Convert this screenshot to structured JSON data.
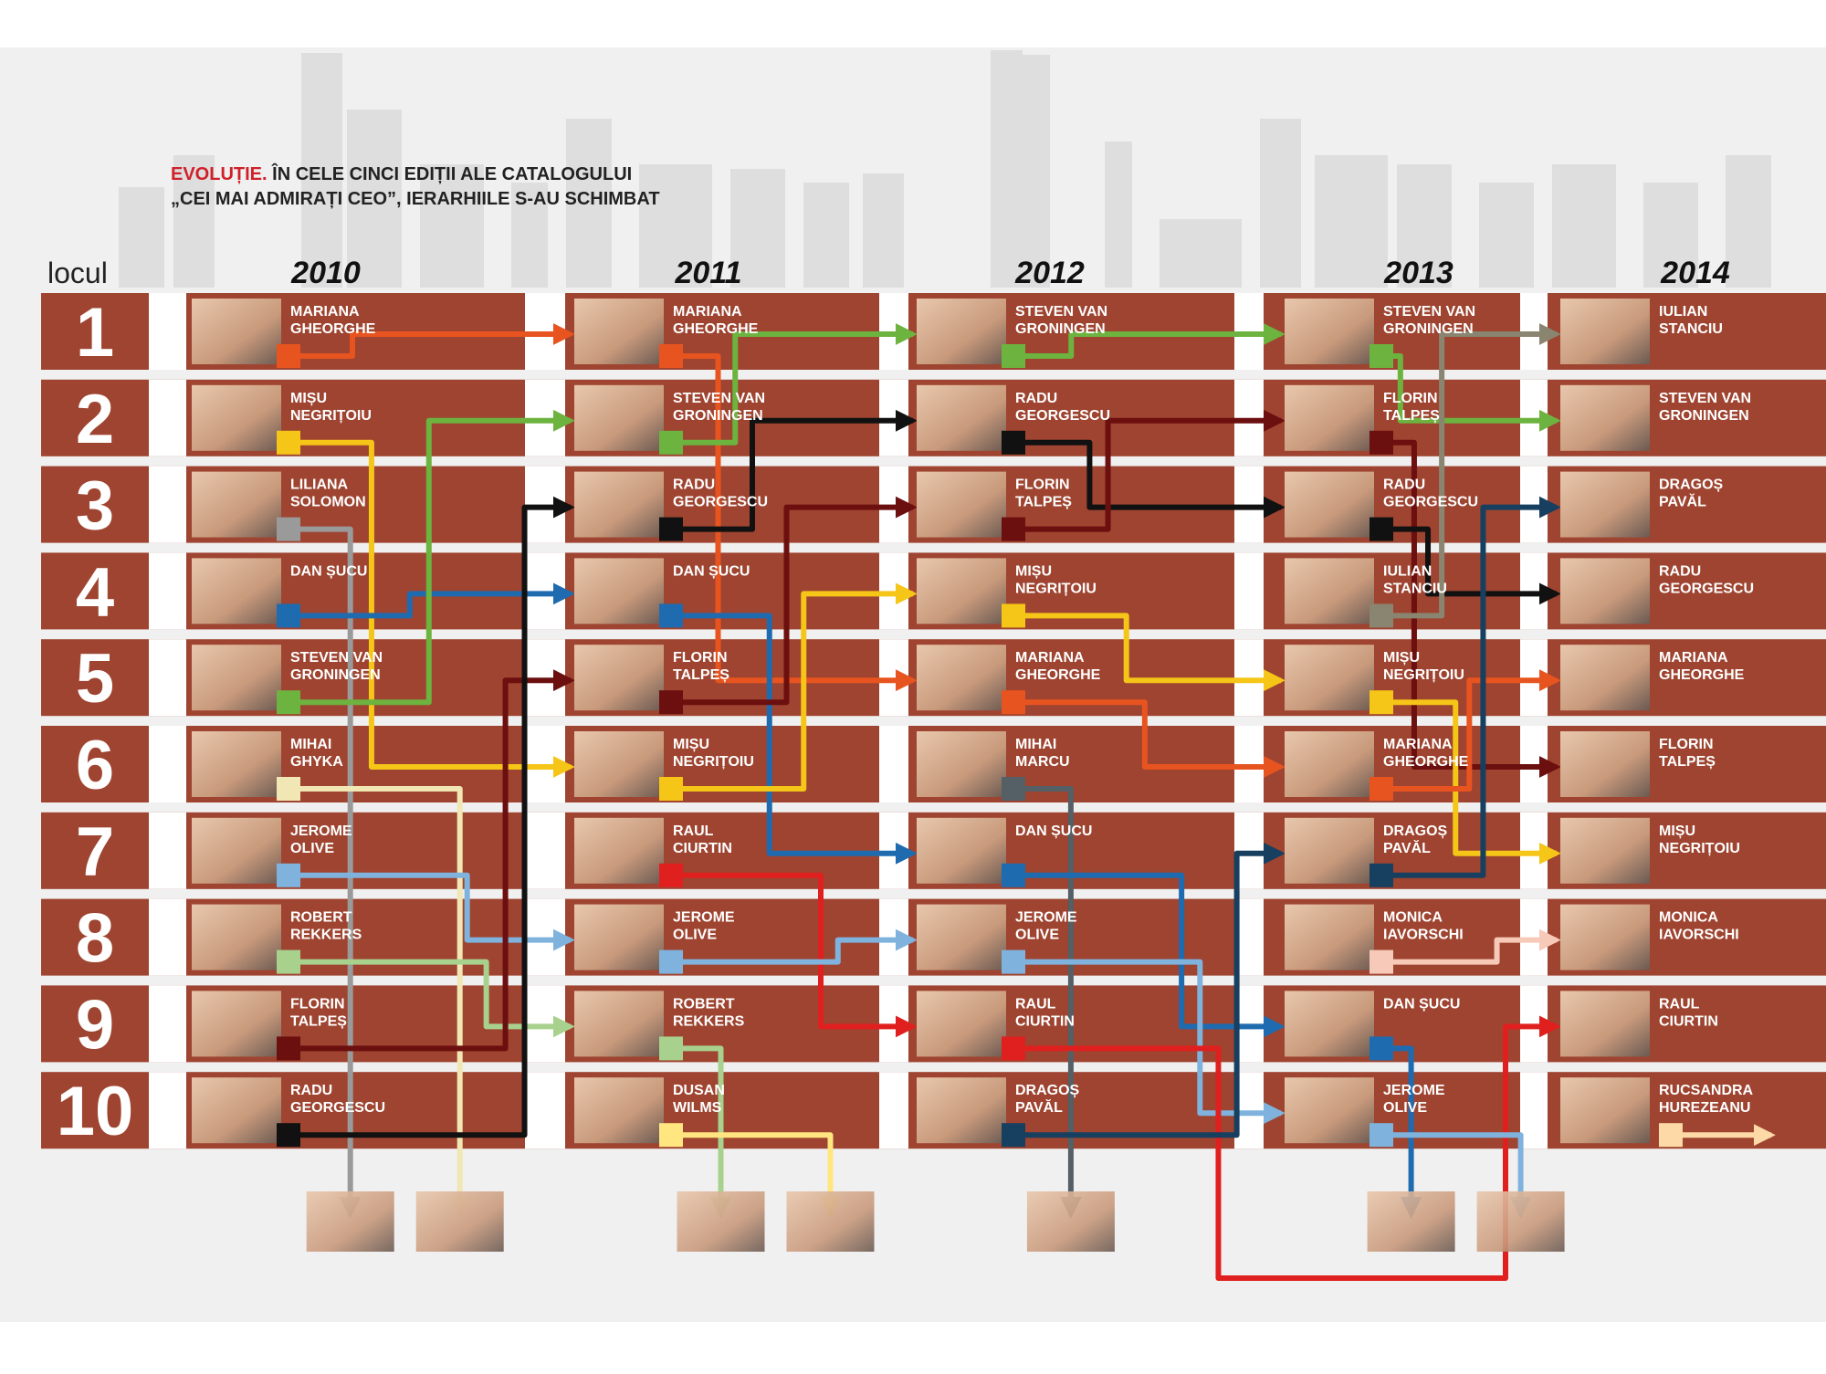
{
  "header": {
    "title_highlight": "EVOLUȚIE.",
    "title_line1": "ÎN CELE CINCI EDIȚII ALE CATALOGULUI",
    "title_line2": "„CEI MAI ADMIRAȚI CEO”, IERARHIILE S-AU SCHIMBAT"
  },
  "rank_label": "locul",
  "ranks": [
    1,
    2,
    3,
    4,
    5,
    6,
    7,
    8,
    9,
    10
  ],
  "columns": [
    {
      "year": 2010,
      "names": [
        [
          "MARIANA",
          "GHEORGHE"
        ],
        [
          "MIȘU",
          "NEGRIȚOIU"
        ],
        [
          "LILIANA",
          "SOLOMON"
        ],
        [
          "DAN ȘUCU"
        ],
        [
          "STEVEN VAN",
          "GRONINGEN"
        ],
        [
          "MIHAI",
          "GHYKA"
        ],
        [
          "JEROME",
          "OLIVE"
        ],
        [
          "ROBERT",
          "REKKERS"
        ],
        [
          "FLORIN",
          "TALPEȘ"
        ],
        [
          "RADU",
          "GEORGESCU"
        ]
      ]
    },
    {
      "year": 2011,
      "names": [
        [
          "MARIANA",
          "GHEORGHE"
        ],
        [
          "STEVEN VAN",
          "GRONINGEN"
        ],
        [
          "RADU",
          "GEORGESCU"
        ],
        [
          "DAN ȘUCU"
        ],
        [
          "FLORIN",
          "TALPEȘ"
        ],
        [
          "MIȘU",
          "NEGRIȚOIU"
        ],
        [
          "RAUL",
          "CIURTIN"
        ],
        [
          "JEROME",
          "OLIVE"
        ],
        [
          "ROBERT",
          "REKKERS"
        ],
        [
          "DUSAN",
          "WILMS"
        ]
      ]
    },
    {
      "year": 2012,
      "names": [
        [
          "STEVEN VAN",
          "GRONINGEN"
        ],
        [
          "RADU",
          "GEORGESCU"
        ],
        [
          "FLORIN",
          "TALPEȘ"
        ],
        [
          "MIȘU",
          "NEGRIȚOIU"
        ],
        [
          "MARIANA",
          "GHEORGHE"
        ],
        [
          "MIHAI",
          "MARCU"
        ],
        [
          "DAN ȘUCU"
        ],
        [
          "JEROME",
          "OLIVE"
        ],
        [
          "RAUL",
          "CIURTIN"
        ],
        [
          "DRAGOȘ",
          "PAVĂL"
        ]
      ]
    },
    {
      "year": 2013,
      "names": [
        [
          "STEVEN VAN",
          "GRONINGEN"
        ],
        [
          "FLORIN",
          "TALPEȘ"
        ],
        [
          "RADU",
          "GEORGESCU"
        ],
        [
          "IULIAN",
          "STANCIU"
        ],
        [
          "MIȘU",
          "NEGRIȚOIU"
        ],
        [
          "MARIANA",
          "GHEORGHE"
        ],
        [
          "DRAGOȘ",
          "PAVĂL"
        ],
        [
          "MONICA",
          "IAVORSCHI"
        ],
        [
          "DAN ȘUCU"
        ],
        [
          "JEROME",
          "OLIVE"
        ]
      ]
    },
    {
      "year": 2014,
      "names": [
        [
          "IULIAN",
          "STANCIU"
        ],
        [
          "STEVEN VAN",
          "GRONINGEN"
        ],
        [
          "DRAGOȘ",
          "PAVĂL"
        ],
        [
          "RADU",
          "GEORGESCU"
        ],
        [
          "MARIANA",
          "GHEORGHE"
        ],
        [
          "FLORIN",
          "TALPEȘ"
        ],
        [
          "MIȘU",
          "NEGRIȚOIU"
        ],
        [
          "MONICA",
          "IAVORSCHI"
        ],
        [
          "RAUL",
          "CIURTIN"
        ],
        [
          "RUCSANDRA",
          "HUREZEANU"
        ]
      ]
    }
  ]
}
